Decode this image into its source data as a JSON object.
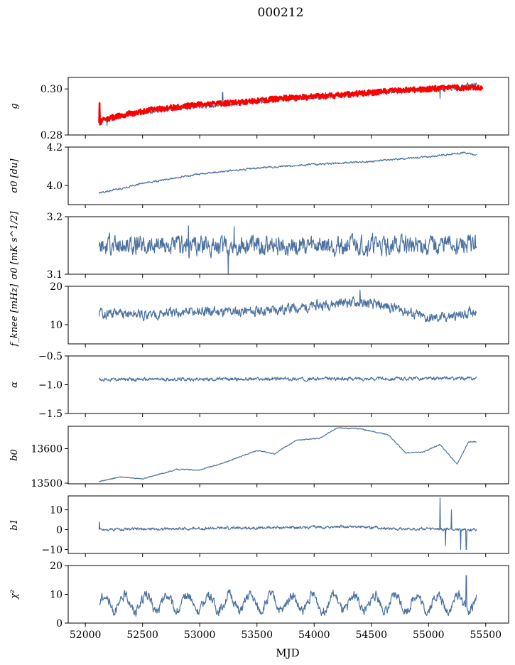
{
  "title": "000212",
  "xlabel": "MJD",
  "xticks": [
    "52000",
    "52500",
    "53000",
    "53500",
    "54000",
    "54500",
    "55000",
    "55500"
  ],
  "colors": {
    "series": "#4c72a0",
    "fit": "#ff0000",
    "axes": "#000000"
  },
  "chart_data": [
    {
      "type": "line",
      "id": "g",
      "ylabel": "g",
      "ylim": [
        0.28,
        0.305
      ],
      "yticks": [
        "0.28",
        "0.30"
      ],
      "xlim": [
        51850,
        55700
      ],
      "series": [
        {
          "name": "g",
          "kind": "data",
          "x_range": [
            52120,
            55420
          ],
          "anchors": [
            [
              52120,
              0.2855
            ],
            [
              52300,
              0.288
            ],
            [
              52600,
              0.2905
            ],
            [
              53000,
              0.2925
            ],
            [
              53300,
              0.2935
            ],
            [
              53700,
              0.2955
            ],
            [
              54200,
              0.297
            ],
            [
              54700,
              0.299
            ],
            [
              55200,
              0.3005
            ],
            [
              55420,
              0.302
            ]
          ],
          "noise": 0.0009,
          "spikes": [
            [
              52128,
              0.294
            ],
            [
              52140,
              0.2845
            ],
            [
              52190,
              0.2842
            ],
            [
              53200,
              0.2985
            ],
            [
              54100,
              0.2985
            ],
            [
              55100,
              0.2958
            ]
          ]
        },
        {
          "name": "fit",
          "kind": "fit",
          "x_range": [
            52120,
            55470
          ],
          "anchors": [
            [
              52120,
              0.286
            ],
            [
              52300,
              0.2885
            ],
            [
              52600,
              0.291
            ],
            [
              53000,
              0.2932
            ],
            [
              53300,
              0.294
            ],
            [
              53700,
              0.2958
            ],
            [
              54200,
              0.2972
            ],
            [
              54700,
              0.2992
            ],
            [
              55200,
              0.3005
            ],
            [
              55470,
              0.3008
            ]
          ],
          "spread": 0.0012,
          "spikes": [
            [
              52125,
              0.2938
            ],
            [
              52128,
              0.2845
            ]
          ]
        }
      ]
    },
    {
      "type": "line",
      "id": "sigma0_du",
      "ylabel": "σ0 [du]",
      "ylim": [
        3.9,
        4.2
      ],
      "yticks": [
        "4.0",
        "4.2"
      ],
      "xlim": [
        51850,
        55700
      ],
      "series": [
        {
          "name": "sigma0_du",
          "kind": "data",
          "x_range": [
            52120,
            55420
          ],
          "anchors": [
            [
              52120,
              3.96
            ],
            [
              52500,
              4.01
            ],
            [
              53000,
              4.06
            ],
            [
              53500,
              4.09
            ],
            [
              54000,
              4.11
            ],
            [
              54500,
              4.125
            ],
            [
              55000,
              4.15
            ],
            [
              55300,
              4.17
            ],
            [
              55420,
              4.16
            ]
          ],
          "noise": 0.004
        }
      ]
    },
    {
      "type": "line",
      "id": "sigma0_mks",
      "ylabel": "σ0 [mK s^1/2]",
      "ylim": [
        3.1,
        3.2
      ],
      "yticks": [
        "3.1",
        "3.2"
      ],
      "xlim": [
        51850,
        55700
      ],
      "series": [
        {
          "name": "sigma0_mks",
          "kind": "data",
          "x_range": [
            52120,
            55420
          ],
          "anchors": [
            [
              52120,
              3.15
            ],
            [
              55420,
              3.15
            ]
          ],
          "noise": 0.014,
          "spikes": [
            [
              53250,
              3.1
            ],
            [
              53300,
              3.183
            ],
            [
              52900,
              3.184
            ]
          ]
        }
      ]
    },
    {
      "type": "line",
      "id": "fknee",
      "ylabel": "f_knee [mHz]",
      "ylim": [
        5,
        20
      ],
      "yticks": [
        "10",
        "20"
      ],
      "xlim": [
        51850,
        55700
      ],
      "series": [
        {
          "name": "fknee",
          "kind": "data",
          "x_range": [
            52120,
            55420
          ],
          "anchors": [
            [
              52120,
              13
            ],
            [
              52500,
              12.5
            ],
            [
              53000,
              13.3
            ],
            [
              53500,
              13.5
            ],
            [
              53900,
              14.5
            ],
            [
              54300,
              16
            ],
            [
              54700,
              14.5
            ],
            [
              55000,
              11.5
            ],
            [
              55300,
              12.5
            ],
            [
              55420,
              14
            ]
          ],
          "noise": 1.1,
          "spikes": [
            [
              54400,
              19
            ]
          ]
        }
      ]
    },
    {
      "type": "line",
      "id": "alpha",
      "ylabel": "α",
      "ylim": [
        -1.5,
        -0.5
      ],
      "yticks": [
        "−1.5",
        "−1.0",
        "−0.5"
      ],
      "xlim": [
        51850,
        55700
      ],
      "series": [
        {
          "name": "alpha",
          "kind": "data",
          "x_range": [
            52120,
            55420
          ],
          "anchors": [
            [
              52120,
              -0.91
            ],
            [
              55420,
              -0.89
            ]
          ],
          "noise": 0.025
        }
      ]
    },
    {
      "type": "line",
      "id": "b0",
      "ylabel": "b0",
      "ylim": [
        13498,
        13665
      ],
      "yticks": [
        "13500",
        "13600"
      ],
      "xlim": [
        51850,
        55700
      ],
      "series": [
        {
          "name": "b0",
          "kind": "data",
          "x_range": [
            52120,
            55420
          ],
          "anchors": [
            [
              52120,
              13505
            ],
            [
              52300,
              13518
            ],
            [
              52500,
              13512
            ],
            [
              52800,
              13540
            ],
            [
              53000,
              13538
            ],
            [
              53200,
              13558
            ],
            [
              53500,
              13595
            ],
            [
              53650,
              13585
            ],
            [
              53850,
              13625
            ],
            [
              54050,
              13630
            ],
            [
              54200,
              13660
            ],
            [
              54400,
              13658
            ],
            [
              54650,
              13640
            ],
            [
              54800,
              13588
            ],
            [
              54950,
              13590
            ],
            [
              55100,
              13612
            ],
            [
              55250,
              13555
            ],
            [
              55350,
              13620
            ],
            [
              55420,
              13620
            ]
          ],
          "noise": 1.2
        }
      ]
    },
    {
      "type": "line",
      "id": "b1",
      "ylabel": "b1",
      "ylim": [
        -12,
        17
      ],
      "yticks": [
        "−10",
        "0",
        "10"
      ],
      "xlim": [
        51850,
        55700
      ],
      "series": [
        {
          "name": "b1",
          "kind": "data",
          "x_range": [
            52120,
            55420
          ],
          "anchors": [
            [
              52120,
              0
            ],
            [
              54400,
              1.5
            ],
            [
              54700,
              0.5
            ],
            [
              55420,
              0
            ]
          ],
          "noise": 0.6,
          "spikes": [
            [
              52125,
              4
            ],
            [
              55100,
              16
            ],
            [
              55150,
              -8
            ],
            [
              55200,
              10
            ],
            [
              55280,
              -10
            ],
            [
              55330,
              -10
            ]
          ]
        }
      ]
    },
    {
      "type": "line",
      "id": "chi2",
      "ylabel": "χ²",
      "ylim": [
        0,
        20
      ],
      "yticks": [
        "0",
        "10",
        "20"
      ],
      "xlim": [
        51850,
        55700
      ],
      "series": [
        {
          "name": "chi2",
          "kind": "data",
          "x_range": [
            52120,
            55420
          ],
          "anchors": [
            [
              52120,
              7
            ],
            [
              55420,
              7
            ]
          ],
          "noise": 1.4,
          "period": 182,
          "amp": 2.8,
          "spikes": [
            [
              55330,
              16.5
            ]
          ]
        }
      ]
    }
  ]
}
